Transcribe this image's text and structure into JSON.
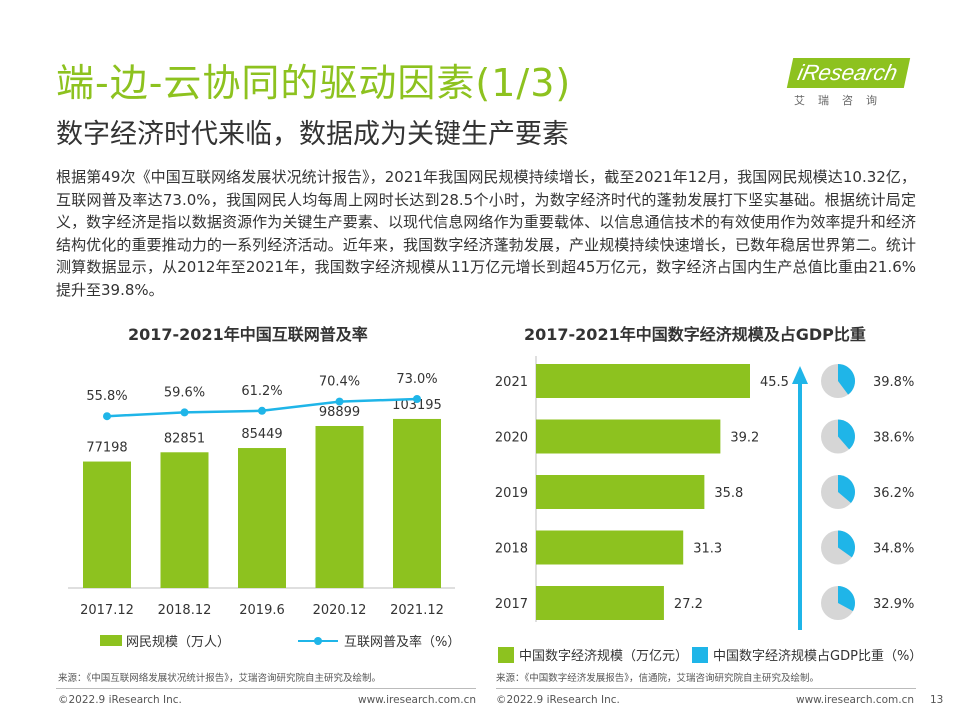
{
  "header": {
    "title": "端-边-云协同的驱动因素(1/3)",
    "subtitle": "数字经济时代来临，数据成为关键生产要素",
    "logo_text": "iResearch",
    "logo_cn": "艾瑞咨询"
  },
  "body_text": "根据第49次《中国互联网络发展状况统计报告》，2021年我国网民规模持续增长，截至2021年12月，我国网民规模达10.32亿，互联网普及率达73.0%，我国网民人均每周上网时长达到28.5个小时，为数字经济时代的蓬勃发展打下坚实基础。根据统计局定义，数字经济是指以数据资源作为关键生产要素、以现代信息网络作为重要载体、以信息通信技术的有效使用作为效率提升和经济结构优化的重要推动力的一系列经济活动。近年来，我国数字经济蓬勃发展，产业规模持续快速增长，已数年稳居世界第二。统计测算数据显示，从2012年至2021年，我国数字经济规模从11万亿元增长到超45万亿元，数字经济占国内生产总值比重由21.6%提升至39.8%。",
  "colors": {
    "green": "#8dc21f",
    "blue": "#1fb5e8",
    "pie_gray": "#d6d6d6"
  },
  "chart_data": [
    {
      "type": "bar",
      "title": "2017-2021年中国互联网普及率",
      "categories": [
        "2017.12",
        "2018.12",
        "2019.6",
        "2020.12",
        "2021.12"
      ],
      "series": [
        {
          "name": "网民规模（万人）",
          "type": "bar",
          "values": [
            77198,
            82851,
            85449,
            98899,
            103195
          ],
          "labels": [
            "77198",
            "82851",
            "85449",
            "98899",
            "103195"
          ]
        },
        {
          "name": "互联网普及率（%）",
          "type": "line",
          "values": [
            55.8,
            59.6,
            61.2,
            70.4,
            73.0
          ],
          "labels": [
            "55.8%",
            "59.6%",
            "61.2%",
            "70.4%",
            "73.0%"
          ]
        }
      ],
      "source": "来源：《中国互联网络发展状况统计报告》，艾瑞咨询研究院自主研究及绘制。"
    },
    {
      "type": "bar",
      "orientation": "horizontal",
      "title": "2017-2021年中国数字经济规模及占GDP比重",
      "categories": [
        "2021",
        "2020",
        "2019",
        "2018",
        "2017"
      ],
      "series": [
        {
          "name": "中国数字经济规模（万亿元）",
          "type": "bar",
          "values": [
            45.5,
            39.2,
            35.8,
            31.3,
            27.2
          ],
          "labels": [
            "45.5",
            "39.2",
            "35.8",
            "31.3",
            "27.2"
          ]
        },
        {
          "name": "中国数字经济规模占GDP比重（%）",
          "type": "pie",
          "values": [
            39.8,
            38.6,
            36.2,
            34.8,
            32.9
          ],
          "labels": [
            "39.8%",
            "38.6%",
            "36.2%",
            "34.8%",
            "32.9%"
          ]
        }
      ],
      "source": "来源：《中国数字经济发展报告》，信通院，艾瑞咨询研究院自主研究及绘制。"
    }
  ],
  "footer": {
    "copyright_left": "©2022.9 iResearch Inc.",
    "url_left": "www.iresearch.com.cn",
    "copyright_right": "©2022.9 iResearch Inc.",
    "url_right": "www.iresearch.com.cn",
    "page_number": "13"
  }
}
